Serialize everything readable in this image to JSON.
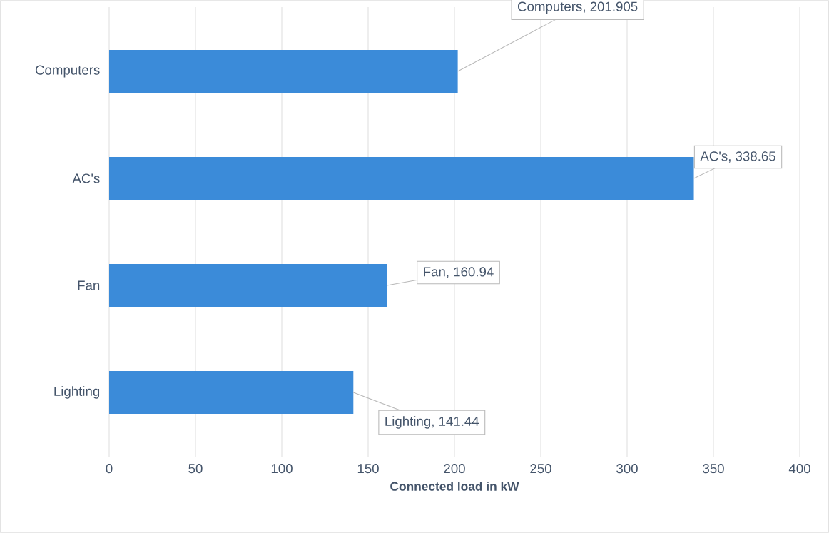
{
  "chart_data": {
    "type": "bar",
    "orientation": "horizontal",
    "xlabel": "Connected load in kW",
    "categories": [
      "Computers",
      "AC's",
      "Fan",
      "Lighting"
    ],
    "values": [
      201.905,
      338.65,
      160.94,
      141.44
    ],
    "value_labels": [
      "Computers, 201.905",
      "AC's, 338.65",
      "Fan, 160.94",
      "Lighting, 141.44"
    ],
    "color": "#3b8bd9",
    "xlim": [
      0,
      400
    ],
    "xticks": [
      0,
      50,
      100,
      150,
      200,
      250,
      300,
      350,
      400
    ],
    "grid": "x"
  }
}
